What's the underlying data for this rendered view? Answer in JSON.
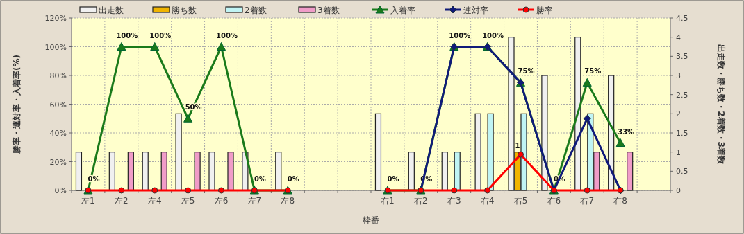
{
  "chart_data": {
    "type": "bar",
    "xlabel": "枠番",
    "ylabel": "勝率・連対率・入着率(%)",
    "y2label": "出走数・勝ち数・2着数・3着数",
    "categories": [
      "左1",
      "左2",
      "左4",
      "左5",
      "左6",
      "左7",
      "左8",
      null,
      null,
      "右1",
      "右2",
      "右3",
      "右4",
      "右5",
      "右6",
      "右7",
      "右8",
      null
    ],
    "ylim": [
      0,
      120
    ],
    "yticks": [
      {
        "value": 0,
        "label": "0%"
      },
      {
        "value": 20,
        "label": "20%"
      },
      {
        "value": 40,
        "label": "40%"
      },
      {
        "value": 60,
        "label": "60%"
      },
      {
        "value": 80,
        "label": "80%"
      },
      {
        "value": 100,
        "label": "100%"
      },
      {
        "value": 120,
        "label": "120%"
      }
    ],
    "y2lim": [
      0,
      4.5
    ],
    "y2ticks": [
      0,
      0.5,
      1,
      1.5,
      2,
      2.5,
      3,
      3.5,
      4,
      4.5
    ],
    "grid": true,
    "legend": "top",
    "series": [
      {
        "name": "出走数",
        "axis": "y2",
        "color": "#f0f0f0",
        "values": [
          1,
          1,
          1,
          2,
          1,
          1,
          1,
          null,
          null,
          2,
          1,
          1,
          2,
          4,
          3,
          4,
          3,
          null
        ]
      },
      {
        "name": "勝ち数",
        "axis": "y2",
        "color": "#f0b400",
        "values": [
          0,
          0,
          0,
          0,
          0,
          0,
          0,
          null,
          null,
          0,
          0,
          0,
          0,
          1,
          0,
          0,
          0,
          null
        ],
        "value_labels": [
          null,
          null,
          null,
          null,
          null,
          null,
          null,
          null,
          null,
          null,
          null,
          null,
          null,
          "1",
          null,
          null,
          null,
          null
        ]
      },
      {
        "name": "2着数",
        "axis": "y2",
        "color": "#c0f4f4",
        "values": [
          0,
          0,
          0,
          0,
          0,
          0,
          0,
          null,
          null,
          0,
          0,
          1,
          2,
          2,
          0,
          2,
          0,
          null
        ]
      },
      {
        "name": "3着数",
        "axis": "y2",
        "color": "#f09cc8",
        "values": [
          0,
          1,
          1,
          1,
          1,
          0,
          0,
          null,
          null,
          0,
          0,
          0,
          0,
          0,
          0,
          1,
          1,
          null
        ]
      },
      {
        "name": "入着率",
        "type": "line",
        "axis": "y",
        "color": "#1a7a1a",
        "marker": "triangle",
        "line_style": "solid",
        "values": [
          0,
          100,
          100,
          50,
          100,
          0,
          0,
          null,
          null,
          0,
          0,
          100,
          100,
          75,
          0,
          75,
          33,
          null
        ],
        "value_labels": [
          "0%",
          "100%",
          "100%",
          "50%",
          "100%",
          "0%",
          "0%",
          null,
          null,
          "0%",
          "0%",
          "100%",
          "100%",
          "75%",
          "0%",
          "75%",
          "33%",
          null
        ]
      },
      {
        "name": "連対率",
        "type": "line",
        "axis": "y",
        "color": "#101a7a",
        "marker": "diamond",
        "line_style": "solid",
        "values": [
          null,
          null,
          null,
          null,
          null,
          null,
          null,
          null,
          null,
          null,
          0,
          100,
          100,
          75,
          0,
          50,
          0,
          null
        ]
      },
      {
        "name": "勝率",
        "type": "line",
        "axis": "y",
        "color": "#ff0000",
        "marker": "circle",
        "line_style": "solid",
        "values": [
          0,
          0,
          0,
          0,
          0,
          0,
          0,
          null,
          null,
          0,
          0,
          0,
          0,
          25,
          0,
          0,
          0,
          null
        ]
      }
    ]
  }
}
